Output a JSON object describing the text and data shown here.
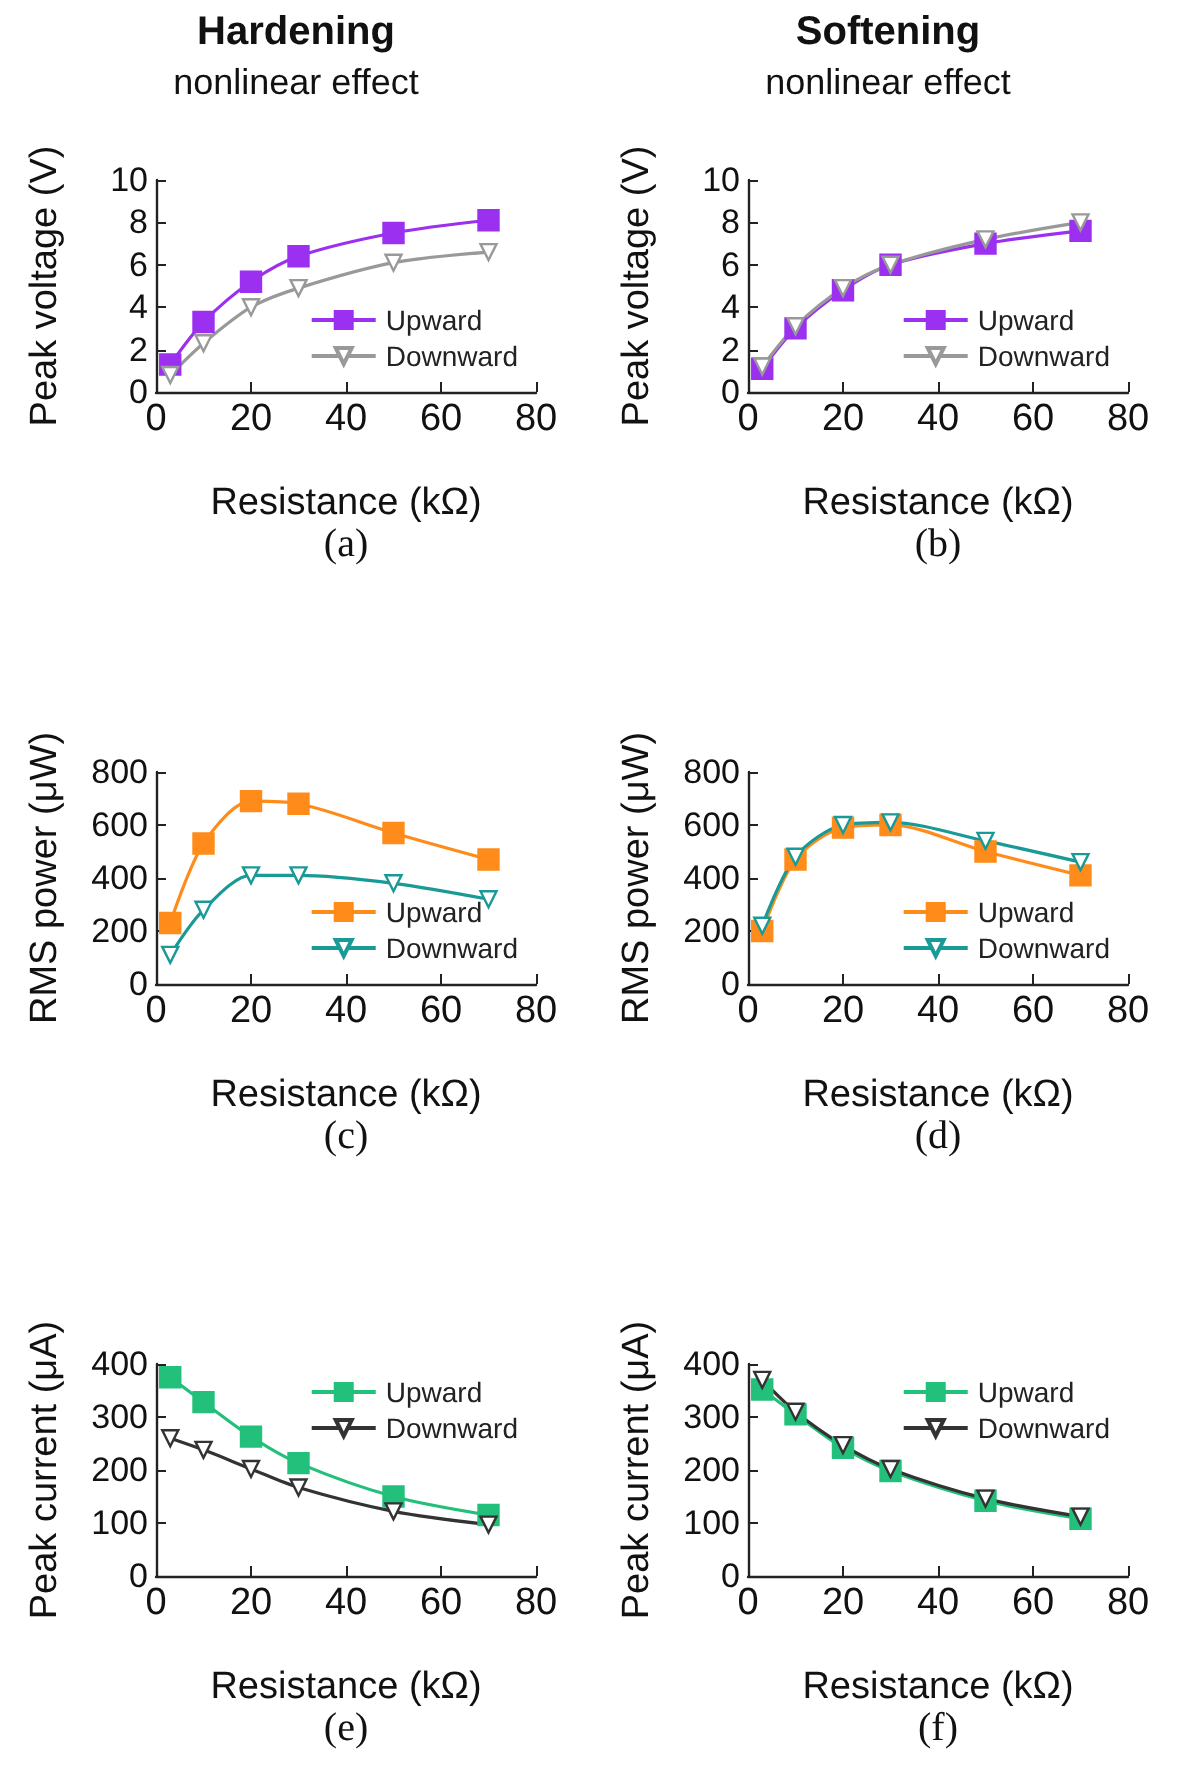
{
  "chart_data": [
    {
      "type": "line",
      "title": "Hardening",
      "subtitle": "nonlinear effect",
      "xlabel": "Resistance (kΩ)",
      "ylabel": "Peak voltage (V)",
      "x": [
        3,
        10,
        20,
        30,
        50,
        70
      ],
      "xlim": [
        0,
        80
      ],
      "xticks": [
        0,
        20,
        40,
        60,
        80
      ],
      "ylim": [
        0,
        10
      ],
      "yticks": [
        0,
        2,
        4,
        6,
        8,
        10
      ],
      "legend": "right",
      "annotations": [
        "(a)"
      ],
      "series": [
        {
          "name": "Upward",
          "color": "#9b30f0",
          "marker": "square",
          "values": [
            1.3,
            3.3,
            5.2,
            6.4,
            7.5,
            8.1
          ]
        },
        {
          "name": "Downward",
          "color": "#999999",
          "marker": "triangle",
          "values": [
            0.8,
            2.3,
            4.0,
            4.9,
            6.1,
            6.6
          ]
        }
      ]
    },
    {
      "type": "line",
      "title": "Softening",
      "subtitle": "nonlinear effect",
      "xlabel": "Resistance (kΩ)",
      "ylabel": "Peak voltage (V)",
      "x": [
        3,
        10,
        20,
        30,
        50,
        70
      ],
      "xlim": [
        0,
        80
      ],
      "xticks": [
        0,
        20,
        40,
        60,
        80
      ],
      "ylim": [
        0,
        10
      ],
      "yticks": [
        0,
        2,
        4,
        6,
        8,
        10
      ],
      "legend": "right",
      "annotations": [
        "(b)"
      ],
      "series": [
        {
          "name": "Upward",
          "color": "#9b30f0",
          "marker": "square",
          "values": [
            1.1,
            3.0,
            4.8,
            6.0,
            7.0,
            7.6
          ]
        },
        {
          "name": "Downward",
          "color": "#999999",
          "marker": "triangle",
          "values": [
            1.2,
            3.1,
            4.9,
            6.0,
            7.2,
            8.0
          ]
        }
      ]
    },
    {
      "type": "line",
      "xlabel": "Resistance (kΩ)",
      "ylabel": "RMS power (μW)",
      "x": [
        3,
        10,
        20,
        30,
        50,
        70
      ],
      "xlim": [
        0,
        80
      ],
      "xticks": [
        0,
        20,
        40,
        60,
        80
      ],
      "ylim": [
        0,
        800
      ],
      "yticks": [
        0,
        200,
        400,
        600,
        800
      ],
      "legend": "right",
      "annotations": [
        "(c)"
      ],
      "series": [
        {
          "name": "Upward",
          "color": "#ff8c1a",
          "marker": "square",
          "values": [
            230,
            530,
            690,
            680,
            570,
            470
          ]
        },
        {
          "name": "Downward",
          "color": "#1a9a96",
          "marker": "triangle",
          "values": [
            110,
            280,
            410,
            410,
            380,
            320
          ]
        }
      ]
    },
    {
      "type": "line",
      "xlabel": "Resistance (kΩ)",
      "ylabel": "RMS power (μW)",
      "x": [
        3,
        10,
        20,
        30,
        50,
        70
      ],
      "xlim": [
        0,
        80
      ],
      "xticks": [
        0,
        20,
        40,
        60,
        80
      ],
      "ylim": [
        0,
        800
      ],
      "yticks": [
        0,
        200,
        400,
        600,
        800
      ],
      "legend": "right",
      "annotations": [
        "(d)"
      ],
      "series": [
        {
          "name": "Upward",
          "color": "#ff8c1a",
          "marker": "square",
          "values": [
            200,
            470,
            590,
            600,
            500,
            410
          ]
        },
        {
          "name": "Downward",
          "color": "#1a9a96",
          "marker": "triangle",
          "values": [
            220,
            480,
            600,
            610,
            540,
            460
          ]
        }
      ]
    },
    {
      "type": "line",
      "xlabel": "Resistance (kΩ)",
      "ylabel": "Peak current (μA)",
      "x": [
        3,
        10,
        20,
        30,
        50,
        70
      ],
      "xlim": [
        0,
        80
      ],
      "xticks": [
        0,
        20,
        40,
        60,
        80
      ],
      "ylim": [
        0,
        400
      ],
      "yticks": [
        0,
        100,
        200,
        300,
        400
      ],
      "legend": "top right",
      "annotations": [
        "(e)"
      ],
      "series": [
        {
          "name": "Upward",
          "color": "#22c07a",
          "marker": "square",
          "values": [
            375,
            328,
            263,
            213,
            150,
            115
          ]
        },
        {
          "name": "Downward",
          "color": "#333333",
          "marker": "triangle",
          "values": [
            260,
            238,
            202,
            167,
            122,
            97
          ]
        }
      ]
    },
    {
      "type": "line",
      "xlabel": "Resistance (kΩ)",
      "ylabel": "Peak current (μA)",
      "x": [
        3,
        10,
        20,
        30,
        50,
        70
      ],
      "xlim": [
        0,
        80
      ],
      "xticks": [
        0,
        20,
        40,
        60,
        80
      ],
      "ylim": [
        0,
        400
      ],
      "yticks": [
        0,
        100,
        200,
        300,
        400
      ],
      "legend": "top right",
      "annotations": [
        "(f)"
      ],
      "series": [
        {
          "name": "Upward",
          "color": "#22c07a",
          "marker": "square",
          "values": [
            352,
            305,
            242,
            198,
            142,
            108
          ]
        },
        {
          "name": "Downward",
          "color": "#333333",
          "marker": "triangle",
          "values": [
            370,
            310,
            247,
            202,
            146,
            112
          ]
        }
      ]
    }
  ]
}
